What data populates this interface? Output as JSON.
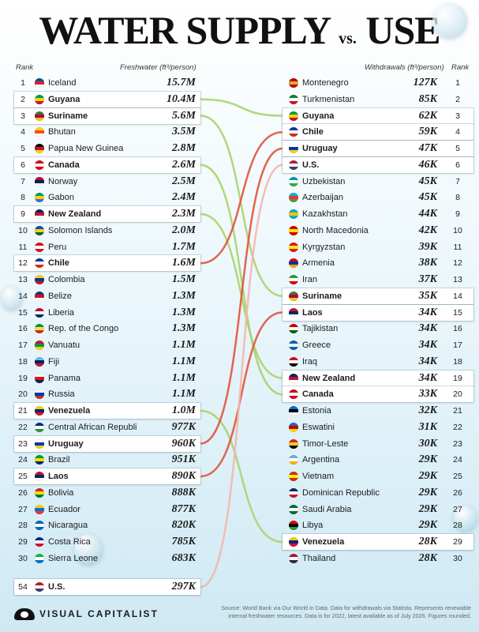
{
  "title": {
    "left": "WATER SUPPLY",
    "mid": "vs.",
    "right": "USE"
  },
  "headers": {
    "rank_left": "Rank",
    "freshwater": "Freshwater (ft³/person)",
    "withdrawals": "Withdrawals (ft³/person)",
    "rank_right": "Rank"
  },
  "chart_data": [
    {
      "type": "table",
      "title": "Freshwater (ft³/person)",
      "rows": [
        {
          "rank": "1",
          "country": "Iceland",
          "value": "15.7M",
          "highlight": false,
          "flag": [
            "#02529C",
            "#DC1E35",
            "#ffffff"
          ]
        },
        {
          "rank": "2",
          "country": "Guyana",
          "value": "10.4M",
          "highlight": true,
          "flag": [
            "#009E49",
            "#FCD116",
            "#CE1126"
          ]
        },
        {
          "rank": "3",
          "country": "Suriname",
          "value": "5.6M",
          "highlight": true,
          "flag": [
            "#377E3F",
            "#B40A2D",
            "#ECC81D"
          ]
        },
        {
          "rank": "4",
          "country": "Bhutan",
          "value": "3.5M",
          "highlight": false,
          "flag": [
            "#FFD520",
            "#FF4E12",
            "#ffffff"
          ]
        },
        {
          "rank": "5",
          "country": "Papua New Guinea",
          "value": "2.8M",
          "highlight": false,
          "flag": [
            "#000000",
            "#CE1126",
            "#FCD116"
          ]
        },
        {
          "rank": "6",
          "country": "Canada",
          "value": "2.6M",
          "highlight": true,
          "flag": [
            "#D80621",
            "#ffffff",
            "#D80621"
          ]
        },
        {
          "rank": "7",
          "country": "Norway",
          "value": "2.5M",
          "highlight": false,
          "flag": [
            "#BA0C2F",
            "#00205B",
            "#ffffff"
          ]
        },
        {
          "rank": "8",
          "country": "Gabon",
          "value": "2.4M",
          "highlight": false,
          "flag": [
            "#009E60",
            "#FCD116",
            "#3A75C4"
          ]
        },
        {
          "rank": "9",
          "country": "New Zealand",
          "value": "2.3M",
          "highlight": true,
          "flag": [
            "#012169",
            "#C8102E",
            "#ffffff"
          ]
        },
        {
          "rank": "10",
          "country": "Solomon Islands",
          "value": "2.0M",
          "highlight": false,
          "flag": [
            "#0051BA",
            "#FCD116",
            "#215B33"
          ]
        },
        {
          "rank": "11",
          "country": "Peru",
          "value": "1.7M",
          "highlight": false,
          "flag": [
            "#D91023",
            "#ffffff",
            "#D91023"
          ]
        },
        {
          "rank": "12",
          "country": "Chile",
          "value": "1.6M",
          "highlight": true,
          "flag": [
            "#0039A6",
            "#ffffff",
            "#D52B1E"
          ]
        },
        {
          "rank": "13",
          "country": "Colombia",
          "value": "1.5M",
          "highlight": false,
          "flag": [
            "#FCD116",
            "#003893",
            "#CE1126"
          ]
        },
        {
          "rank": "14",
          "country": "Belize",
          "value": "1.3M",
          "highlight": false,
          "flag": [
            "#003F87",
            "#CE1126",
            "#ffffff"
          ]
        },
        {
          "rank": "15",
          "country": "Liberia",
          "value": "1.3M",
          "highlight": false,
          "flag": [
            "#BF0A30",
            "#ffffff",
            "#002868"
          ]
        },
        {
          "rank": "16",
          "country": "Rep. of the Congo",
          "value": "1.3M",
          "highlight": false,
          "flag": [
            "#009543",
            "#FBDE4A",
            "#DC241F"
          ]
        },
        {
          "rank": "17",
          "country": "Vanuatu",
          "value": "1.1M",
          "highlight": false,
          "flag": [
            "#D21034",
            "#009543",
            "#FDCE12"
          ]
        },
        {
          "rank": "18",
          "country": "Fiji",
          "value": "1.1M",
          "highlight": false,
          "flag": [
            "#68BFE5",
            "#012169",
            "#C8102E"
          ]
        },
        {
          "rank": "19",
          "country": "Panama",
          "value": "1.1M",
          "highlight": false,
          "flag": [
            "#ffffff",
            "#DA121A",
            "#072357"
          ]
        },
        {
          "rank": "20",
          "country": "Russia",
          "value": "1.1M",
          "highlight": false,
          "flag": [
            "#ffffff",
            "#0039A6",
            "#D52B1E"
          ]
        },
        {
          "rank": "21",
          "country": "Venezuela",
          "value": "1.0M",
          "highlight": true,
          "flag": [
            "#FFCC00",
            "#00247D",
            "#CF142B"
          ]
        },
        {
          "rank": "22",
          "country": "Central African Republic",
          "value": "977K",
          "highlight": false,
          "flag": [
            "#003082",
            "#ffffff",
            "#289728"
          ]
        },
        {
          "rank": "23",
          "country": "Uruguay",
          "value": "960K",
          "highlight": true,
          "flag": [
            "#ffffff",
            "#0038A8",
            "#FCD116"
          ]
        },
        {
          "rank": "24",
          "country": "Brazil",
          "value": "951K",
          "highlight": false,
          "flag": [
            "#009C3B",
            "#FFDF00",
            "#002776"
          ]
        },
        {
          "rank": "25",
          "country": "Laos",
          "value": "890K",
          "highlight": true,
          "flag": [
            "#CE1126",
            "#002868",
            "#ffffff"
          ]
        },
        {
          "rank": "26",
          "country": "Bolivia",
          "value": "888K",
          "highlight": false,
          "flag": [
            "#D52B1E",
            "#F9E300",
            "#007934"
          ]
        },
        {
          "rank": "27",
          "country": "Ecuador",
          "value": "877K",
          "highlight": false,
          "flag": [
            "#FFD100",
            "#0072CE",
            "#EF3340"
          ]
        },
        {
          "rank": "28",
          "country": "Nicaragua",
          "value": "820K",
          "highlight": false,
          "flag": [
            "#0067C6",
            "#ffffff",
            "#0067C6"
          ]
        },
        {
          "rank": "29",
          "country": "Costa Rica",
          "value": "785K",
          "highlight": false,
          "flag": [
            "#002B7F",
            "#ffffff",
            "#CE1126"
          ]
        },
        {
          "rank": "30",
          "country": "Sierra Leone",
          "value": "683K",
          "highlight": false,
          "flag": [
            "#1EB53A",
            "#ffffff",
            "#0072C6"
          ]
        },
        {
          "rank": "54",
          "country": "U.S.",
          "value": "297K",
          "highlight": true,
          "flag": [
            "#B22234",
            "#ffffff",
            "#3C3B6E"
          ]
        }
      ]
    },
    {
      "type": "table",
      "title": "Withdrawals (ft³/person)",
      "rows": [
        {
          "rank": "1",
          "country": "Montenegro",
          "value": "127K",
          "highlight": false,
          "flag": [
            "#C40308",
            "#D4AF3A",
            "#C40308"
          ]
        },
        {
          "rank": "2",
          "country": "Turkmenistan",
          "value": "85K",
          "highlight": false,
          "flag": [
            "#00843D",
            "#ffffff",
            "#C8102E"
          ]
        },
        {
          "rank": "3",
          "country": "Guyana",
          "value": "62K",
          "highlight": true,
          "flag": [
            "#009E49",
            "#FCD116",
            "#CE1126"
          ]
        },
        {
          "rank": "4",
          "country": "Chile",
          "value": "59K",
          "highlight": true,
          "flag": [
            "#0039A6",
            "#ffffff",
            "#D52B1E"
          ]
        },
        {
          "rank": "5",
          "country": "Uruguay",
          "value": "47K",
          "highlight": true,
          "flag": [
            "#ffffff",
            "#0038A8",
            "#FCD116"
          ]
        },
        {
          "rank": "6",
          "country": "U.S.",
          "value": "46K",
          "highlight": true,
          "flag": [
            "#B22234",
            "#ffffff",
            "#3C3B6E"
          ]
        },
        {
          "rank": "7",
          "country": "Uzbekistan",
          "value": "45K",
          "highlight": false,
          "flag": [
            "#0099B5",
            "#ffffff",
            "#1EB53A"
          ]
        },
        {
          "rank": "8",
          "country": "Azerbaijan",
          "value": "45K",
          "highlight": false,
          "flag": [
            "#00B5E2",
            "#EF3340",
            "#509E2F"
          ]
        },
        {
          "rank": "9",
          "country": "Kazakhstan",
          "value": "44K",
          "highlight": false,
          "flag": [
            "#00AFCA",
            "#FEC50C",
            "#00AFCA"
          ]
        },
        {
          "rank": "10",
          "country": "North Macedonia",
          "value": "42K",
          "highlight": false,
          "flag": [
            "#D20000",
            "#FFE600",
            "#D20000"
          ]
        },
        {
          "rank": "11",
          "country": "Kyrgyzstan",
          "value": "39K",
          "highlight": false,
          "flag": [
            "#E8112D",
            "#FFEF00",
            "#E8112D"
          ]
        },
        {
          "rank": "12",
          "country": "Armenia",
          "value": "38K",
          "highlight": false,
          "flag": [
            "#D90012",
            "#0033A0",
            "#F2A800"
          ]
        },
        {
          "rank": "13",
          "country": "Iran",
          "value": "37K",
          "highlight": false,
          "flag": [
            "#239F40",
            "#ffffff",
            "#DA0000"
          ]
        },
        {
          "rank": "14",
          "country": "Suriname",
          "value": "35K",
          "highlight": true,
          "flag": [
            "#377E3F",
            "#B40A2D",
            "#ECC81D"
          ]
        },
        {
          "rank": "15",
          "country": "Laos",
          "value": "34K",
          "highlight": true,
          "flag": [
            "#CE1126",
            "#002868",
            "#ffffff"
          ]
        },
        {
          "rank": "16",
          "country": "Tajikistan",
          "value": "34K",
          "highlight": false,
          "flag": [
            "#CC0000",
            "#ffffff",
            "#006600"
          ]
        },
        {
          "rank": "17",
          "country": "Greece",
          "value": "34K",
          "highlight": false,
          "flag": [
            "#0D5EAF",
            "#ffffff",
            "#0D5EAF"
          ]
        },
        {
          "rank": "18",
          "country": "Iraq",
          "value": "34K",
          "highlight": false,
          "flag": [
            "#CE1126",
            "#ffffff",
            "#000000"
          ]
        },
        {
          "rank": "19",
          "country": "New Zealand",
          "value": "34K",
          "highlight": true,
          "flag": [
            "#012169",
            "#C8102E",
            "#ffffff"
          ]
        },
        {
          "rank": "20",
          "country": "Canada",
          "value": "33K",
          "highlight": true,
          "flag": [
            "#D80621",
            "#ffffff",
            "#D80621"
          ]
        },
        {
          "rank": "21",
          "country": "Estonia",
          "value": "32K",
          "highlight": false,
          "flag": [
            "#0072CE",
            "#000000",
            "#ffffff"
          ]
        },
        {
          "rank": "22",
          "country": "Eswatini",
          "value": "31K",
          "highlight": false,
          "flag": [
            "#3E5EB9",
            "#B10C0C",
            "#FFD900"
          ]
        },
        {
          "rank": "23",
          "country": "Timor-Leste",
          "value": "30K",
          "highlight": false,
          "flag": [
            "#DC241F",
            "#FFC726",
            "#000000"
          ]
        },
        {
          "rank": "24",
          "country": "Argentina",
          "value": "29K",
          "highlight": false,
          "flag": [
            "#74ACDF",
            "#ffffff",
            "#F6B40E"
          ]
        },
        {
          "rank": "25",
          "country": "Vietnam",
          "value": "29K",
          "highlight": false,
          "flag": [
            "#DA251D",
            "#FFFF00",
            "#DA251D"
          ]
        },
        {
          "rank": "26",
          "country": "Dominican Republic",
          "value": "29K",
          "highlight": false,
          "flag": [
            "#002D62",
            "#ffffff",
            "#CE1126"
          ]
        },
        {
          "rank": "27",
          "country": "Saudi Arabia",
          "value": "29K",
          "highlight": false,
          "flag": [
            "#006C35",
            "#ffffff",
            "#006C35"
          ]
        },
        {
          "rank": "28",
          "country": "Libya",
          "value": "29K",
          "highlight": false,
          "flag": [
            "#E70013",
            "#000000",
            "#239E46"
          ]
        },
        {
          "rank": "29",
          "country": "Venezuela",
          "value": "28K",
          "highlight": true,
          "flag": [
            "#FFCC00",
            "#00247D",
            "#CF142B"
          ]
        },
        {
          "rank": "30",
          "country": "Thailand",
          "value": "28K",
          "highlight": false,
          "flag": [
            "#A51931",
            "#F4F5F8",
            "#2D2A4A"
          ]
        }
      ]
    }
  ],
  "link_colors": {
    "green": "#a9d36a",
    "red": "#e0533d",
    "blush": "#f2b7ad"
  },
  "brand": "VISUAL CAPITALIST",
  "source": "Source: World Bank via Our World in Data. Data for withdrawals via Statista. Represents renewable internal freshwater resources. Data is for 2022, latest available as of July 2026. Figures rounded."
}
